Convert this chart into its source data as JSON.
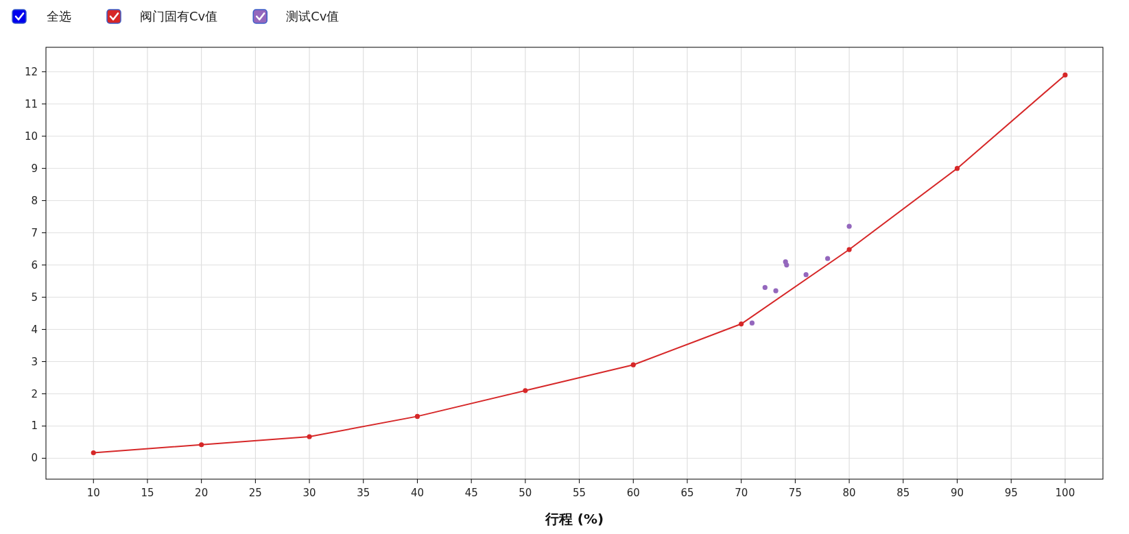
{
  "chart_data": {
    "type": "line",
    "xlabel": "行程 (%)",
    "annotations": [
      "全选"
    ],
    "legend": "top left",
    "grid": true,
    "marker": "circle",
    "xlim": [
      5.6,
      103.5
    ],
    "ylim": [
      -0.65,
      12.76
    ],
    "xticks": [
      10,
      15,
      20,
      25,
      30,
      35,
      40,
      45,
      50,
      55,
      60,
      65,
      70,
      75,
      80,
      85,
      90,
      95,
      100
    ],
    "yticks": [
      0,
      1,
      2,
      3,
      4,
      5,
      6,
      7,
      8,
      9,
      10,
      11,
      12
    ],
    "series": [
      {
        "name": "阀门固有Cv值",
        "color": "#d62728",
        "x": [
          10,
          20,
          30,
          40,
          50,
          60,
          70,
          80,
          90,
          100
        ],
        "values": [
          0.17,
          0.42,
          0.67,
          1.3,
          2.1,
          2.9,
          4.17,
          6.48,
          9.0,
          11.9
        ]
      },
      {
        "name": "测试Cv值",
        "type": "scatter",
        "color": "#9467bd",
        "x": [
          71,
          72.2,
          73.2,
          74.1,
          74.2,
          76,
          78,
          80
        ],
        "values": [
          4.2,
          5.3,
          5.2,
          6.1,
          6.0,
          5.7,
          6.2,
          7.2
        ]
      }
    ]
  }
}
